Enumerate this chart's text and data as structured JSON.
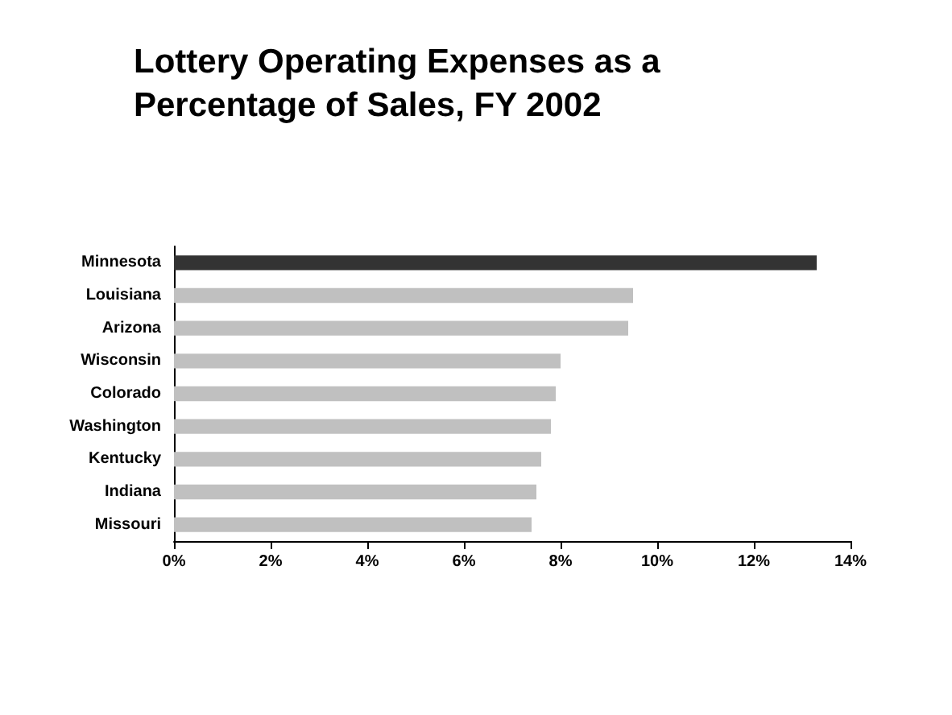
{
  "chart_data": {
    "type": "bar",
    "orientation": "horizontal",
    "title": "Lottery Operating Expenses as a Percentage of Sales, FY 2002",
    "categories": [
      "Minnesota",
      "Louisiana",
      "Arizona",
      "Wisconsin",
      "Colorado",
      "Washington",
      "Kentucky",
      "Indiana",
      "Missouri"
    ],
    "values": [
      13.3,
      9.5,
      9.4,
      8.0,
      7.9,
      7.8,
      7.6,
      7.5,
      7.4
    ],
    "colors": [
      "#333333",
      "#c0c0c0",
      "#c0c0c0",
      "#c0c0c0",
      "#c0c0c0",
      "#c0c0c0",
      "#c0c0c0",
      "#c0c0c0",
      "#c0c0c0"
    ],
    "xlim": [
      0,
      14
    ],
    "xticks": [
      {
        "value": 0,
        "label": "0%"
      },
      {
        "value": 2,
        "label": "2%"
      },
      {
        "value": 4,
        "label": "4%"
      },
      {
        "value": 6,
        "label": "6%"
      },
      {
        "value": 8,
        "label": "8%"
      },
      {
        "value": 10,
        "label": "10%"
      },
      {
        "value": 12,
        "label": "12%"
      },
      {
        "value": 14,
        "label": "14%"
      }
    ],
    "grid": false
  }
}
